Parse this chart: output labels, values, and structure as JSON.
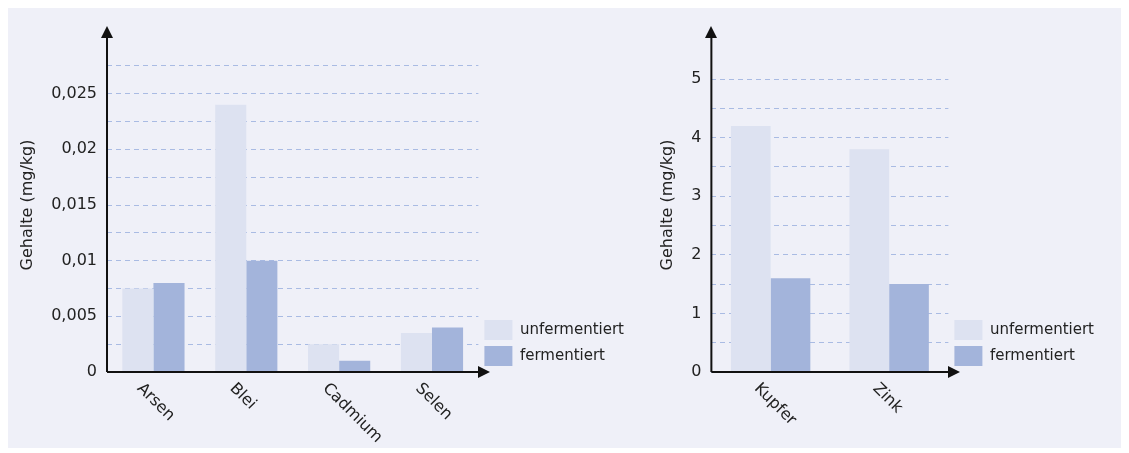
{
  "chart_data": [
    {
      "type": "bar",
      "categories": [
        "Arsen",
        "Blei",
        "Cadmium",
        "Selen"
      ],
      "ylabel": "Gehalte (mg/kg)",
      "ylim": [
        0,
        0.03
      ],
      "yticks": [
        0,
        {
          "value": 0.0025,
          "label": null
        },
        {
          "value": 0.005,
          "label": "0,005"
        },
        {
          "value": 0.0075,
          "label": null
        },
        {
          "value": 0.01,
          "label": "0,01"
        },
        {
          "value": 0.0125,
          "label": null
        },
        {
          "value": 0.015,
          "label": "0,015"
        },
        {
          "value": 0.0175,
          "label": null
        },
        {
          "value": 0.02,
          "label": "0,02"
        },
        {
          "value": 0.0225,
          "label": null
        },
        {
          "value": 0.025,
          "label": "0,025"
        },
        {
          "value": 0.0275,
          "label": null
        }
      ],
      "grid": "y",
      "legend": "bottom right",
      "series": [
        {
          "name": "unfermentiert",
          "color": "#dde2f1",
          "values": [
            0.0075,
            0.024,
            0.0025,
            0.0035
          ]
        },
        {
          "name": "fermentiert",
          "color": "#a3b4db",
          "values": [
            0.008,
            0.01,
            0.001,
            0.004
          ]
        }
      ]
    },
    {
      "type": "bar",
      "categories": [
        "Kupfer",
        "Zink"
      ],
      "ylabel": "Gehalte (mg/kg)",
      "ylim": [
        0,
        5.7
      ],
      "yticks": [
        0,
        {
          "value": 0.5,
          "label": null
        },
        1,
        {
          "value": 1.5,
          "label": null
        },
        2,
        {
          "value": 2.5,
          "label": null
        },
        3,
        {
          "value": 3.5,
          "label": null
        },
        4,
        {
          "value": 4.5,
          "label": null
        },
        5
      ],
      "grid": "y",
      "legend": "bottom right",
      "series": [
        {
          "name": "unfermentiert",
          "color": "#dde2f1",
          "values": [
            4.2,
            3.8
          ]
        },
        {
          "name": "fermentiert",
          "color": "#a3b4db",
          "values": [
            1.6,
            1.5
          ]
        }
      ]
    }
  ]
}
